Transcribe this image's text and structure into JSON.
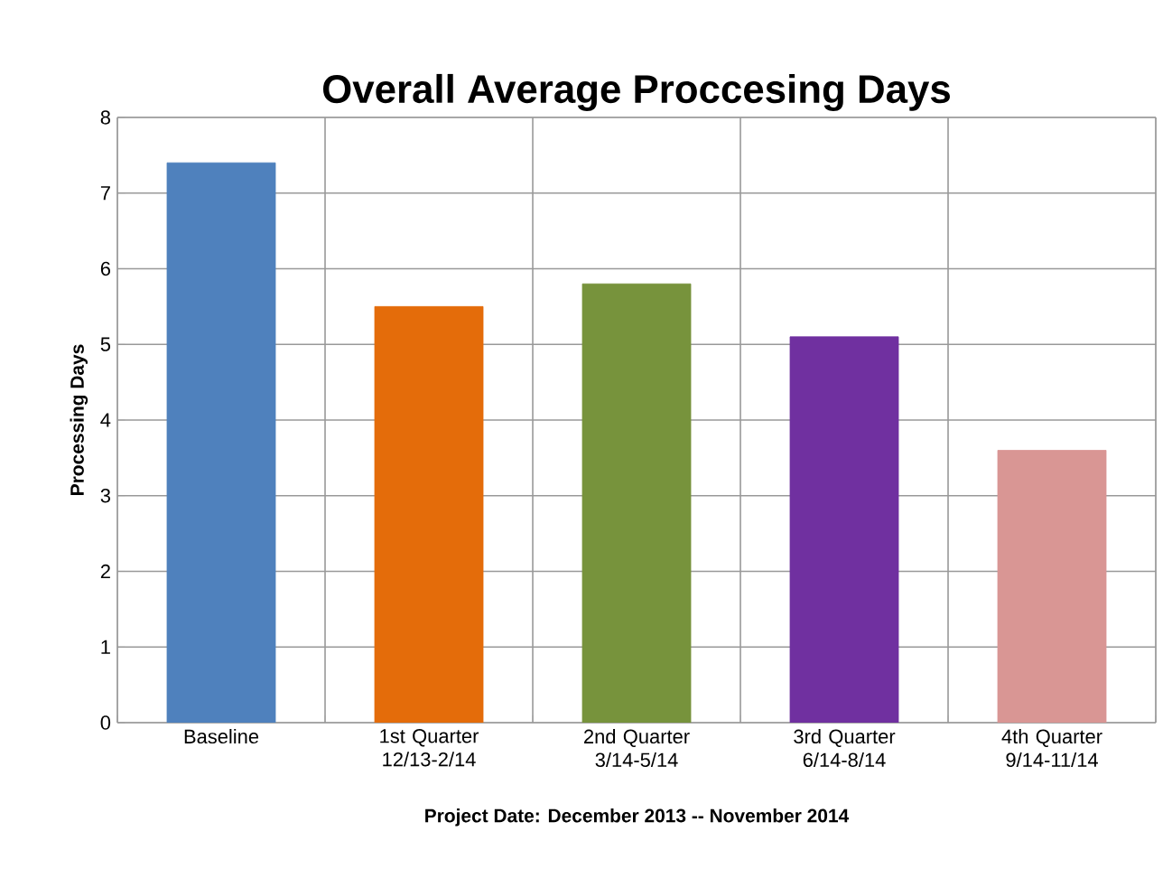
{
  "chart_data": {
    "type": "bar",
    "title": "Overall Average Proccesing Days",
    "categories": [
      "Baseline",
      "1st Quarter 12/13-2/14",
      "2nd Quarter 3/14-5/14",
      "3rd Quarter 6/14-8/14",
      "4th Quarter 9/14-11/14"
    ],
    "values": [
      7.4,
      5.5,
      5.8,
      5.1,
      3.6
    ],
    "colors": [
      "#4f81bd",
      "#e46c0a",
      "#77933c",
      "#7030a0",
      "#d99694"
    ],
    "xlabel": "Project Date: December 2013 -- November 2014",
    "ylabel": "Processing Days",
    "ylim": [
      0,
      8
    ],
    "yticks": [
      0,
      1,
      2,
      3,
      4,
      5,
      6,
      7,
      8
    ],
    "grid": true
  }
}
